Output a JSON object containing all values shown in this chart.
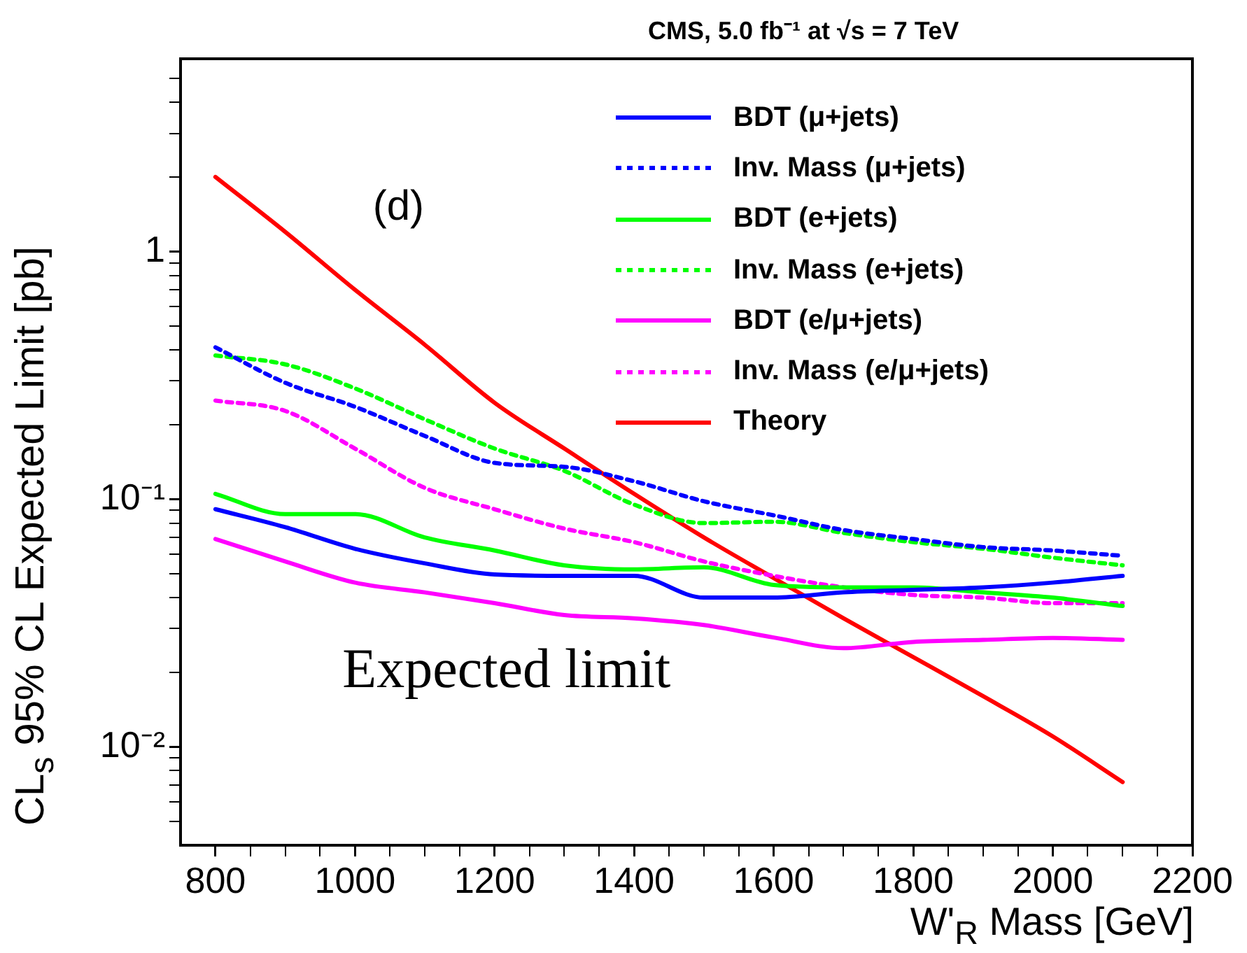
{
  "chart_data": {
    "type": "line",
    "title": "CMS, 5.0 fb⁻¹ at √s = 7 TeV",
    "xlabel": "W'$_{R}$ Mass [GeV]",
    "ylabel": "CL$_{s}$ 95% CL Expected Limit [pb]",
    "annotations": [
      "(d)",
      "Expected limit"
    ],
    "x": [
      800,
      900,
      1000,
      1100,
      1200,
      1300,
      1400,
      1500,
      1600,
      1700,
      1800,
      1900,
      2000,
      2100
    ],
    "series": [
      {
        "name": "BDT (μ+jets)",
        "color": "#0000ff",
        "line_style": "solid",
        "values": [
          0.091,
          0.077,
          0.063,
          0.055,
          0.0496,
          0.049,
          0.049,
          0.04,
          0.04,
          0.042,
          0.043,
          0.044,
          0.046,
          0.049
        ]
      },
      {
        "name": "Inv. Mass (μ+jets)",
        "color": "#0000ff",
        "line_style": "dotted",
        "values": [
          0.41,
          0.295,
          0.236,
          0.18,
          0.14,
          0.135,
          0.118,
          0.098,
          0.086,
          0.075,
          0.069,
          0.064,
          0.062,
          0.059
        ]
      },
      {
        "name": "BDT (e+jets)",
        "color": "#00ff00",
        "line_style": "solid",
        "values": [
          0.105,
          0.087,
          0.087,
          0.07,
          0.062,
          0.054,
          0.052,
          0.053,
          0.045,
          0.044,
          0.044,
          0.042,
          0.04,
          0.037
        ]
      },
      {
        "name": "Inv. Mass (e+jets)",
        "color": "#00ff00",
        "line_style": "dotted",
        "values": [
          0.38,
          0.35,
          0.28,
          0.21,
          0.16,
          0.13,
          0.095,
          0.08,
          0.081,
          0.073,
          0.067,
          0.063,
          0.058,
          0.054
        ]
      },
      {
        "name": "BDT (e/μ+jets)",
        "color": "#ff00ff",
        "line_style": "solid",
        "values": [
          0.069,
          0.056,
          0.046,
          0.042,
          0.038,
          0.034,
          0.033,
          0.031,
          0.0276,
          0.025,
          0.0265,
          0.027,
          0.0275,
          0.027
        ]
      },
      {
        "name": "Inv. Mass (e/μ+jets)",
        "color": "#ff00ff",
        "line_style": "dotted",
        "values": [
          0.25,
          0.227,
          0.16,
          0.111,
          0.091,
          0.076,
          0.067,
          0.056,
          0.049,
          0.044,
          0.041,
          0.04,
          0.038,
          0.038
        ]
      },
      {
        "name": "Theory",
        "color": "#ff0000",
        "line_style": "solid",
        "values": [
          2.0,
          1.2,
          0.7,
          0.42,
          0.245,
          0.16,
          0.105,
          0.07,
          0.048,
          0.033,
          0.023,
          0.016,
          0.011,
          0.0072
        ]
      }
    ],
    "xlim": [
      750,
      2200
    ],
    "xticks": [
      800,
      {
        "value": 850,
        "label": null
      },
      {
        "value": 900,
        "label": null
      },
      {
        "value": 950,
        "label": null
      },
      1000,
      {
        "value": 1050,
        "label": null
      },
      {
        "value": 1100,
        "label": null
      },
      {
        "value": 1150,
        "label": null
      },
      1200,
      {
        "value": 1250,
        "label": null
      },
      {
        "value": 1300,
        "label": null
      },
      {
        "value": 1350,
        "label": null
      },
      1400,
      {
        "value": 1450,
        "label": null
      },
      {
        "value": 1500,
        "label": null
      },
      {
        "value": 1550,
        "label": null
      },
      1600,
      {
        "value": 1650,
        "label": null
      },
      {
        "value": 1700,
        "label": null
      },
      {
        "value": 1750,
        "label": null
      },
      1800,
      {
        "value": 1850,
        "label": null
      },
      {
        "value": 1900,
        "label": null
      },
      {
        "value": 1950,
        "label": null
      },
      2000,
      {
        "value": 2050,
        "label": null
      },
      {
        "value": 2100,
        "label": null
      },
      {
        "value": 2150,
        "label": null
      },
      2200
    ],
    "ylim": [
      0.004,
      6
    ],
    "yticks": [
      {
        "value": 0.005,
        "label": null
      },
      {
        "value": 0.006,
        "label": null
      },
      {
        "value": 0.007,
        "label": null
      },
      {
        "value": 0.008,
        "label": null
      },
      {
        "value": 0.009,
        "label": null
      },
      {
        "value": 0.01,
        "label": "10⁻²"
      },
      {
        "value": 0.02,
        "label": null
      },
      {
        "value": 0.03,
        "label": null
      },
      {
        "value": 0.04,
        "label": null
      },
      {
        "value": 0.05,
        "label": null
      },
      {
        "value": 0.06,
        "label": null
      },
      {
        "value": 0.07,
        "label": null
      },
      {
        "value": 0.08,
        "label": null
      },
      {
        "value": 0.09,
        "label": null
      },
      {
        "value": 0.1,
        "label": "10⁻¹"
      },
      {
        "value": 0.2,
        "label": null
      },
      {
        "value": 0.3,
        "label": null
      },
      {
        "value": 0.4,
        "label": null
      },
      {
        "value": 0.5,
        "label": null
      },
      {
        "value": 0.6,
        "label": null
      },
      {
        "value": 0.7,
        "label": null
      },
      {
        "value": 0.8,
        "label": null
      },
      {
        "value": 0.9,
        "label": null
      },
      1,
      {
        "value": 2,
        "label": null
      },
      {
        "value": 3,
        "label": null
      },
      {
        "value": 4,
        "label": null
      },
      {
        "value": 5,
        "label": null
      }
    ],
    "log": "y",
    "grid": false,
    "legend": "top right",
    "marker": "none"
  }
}
